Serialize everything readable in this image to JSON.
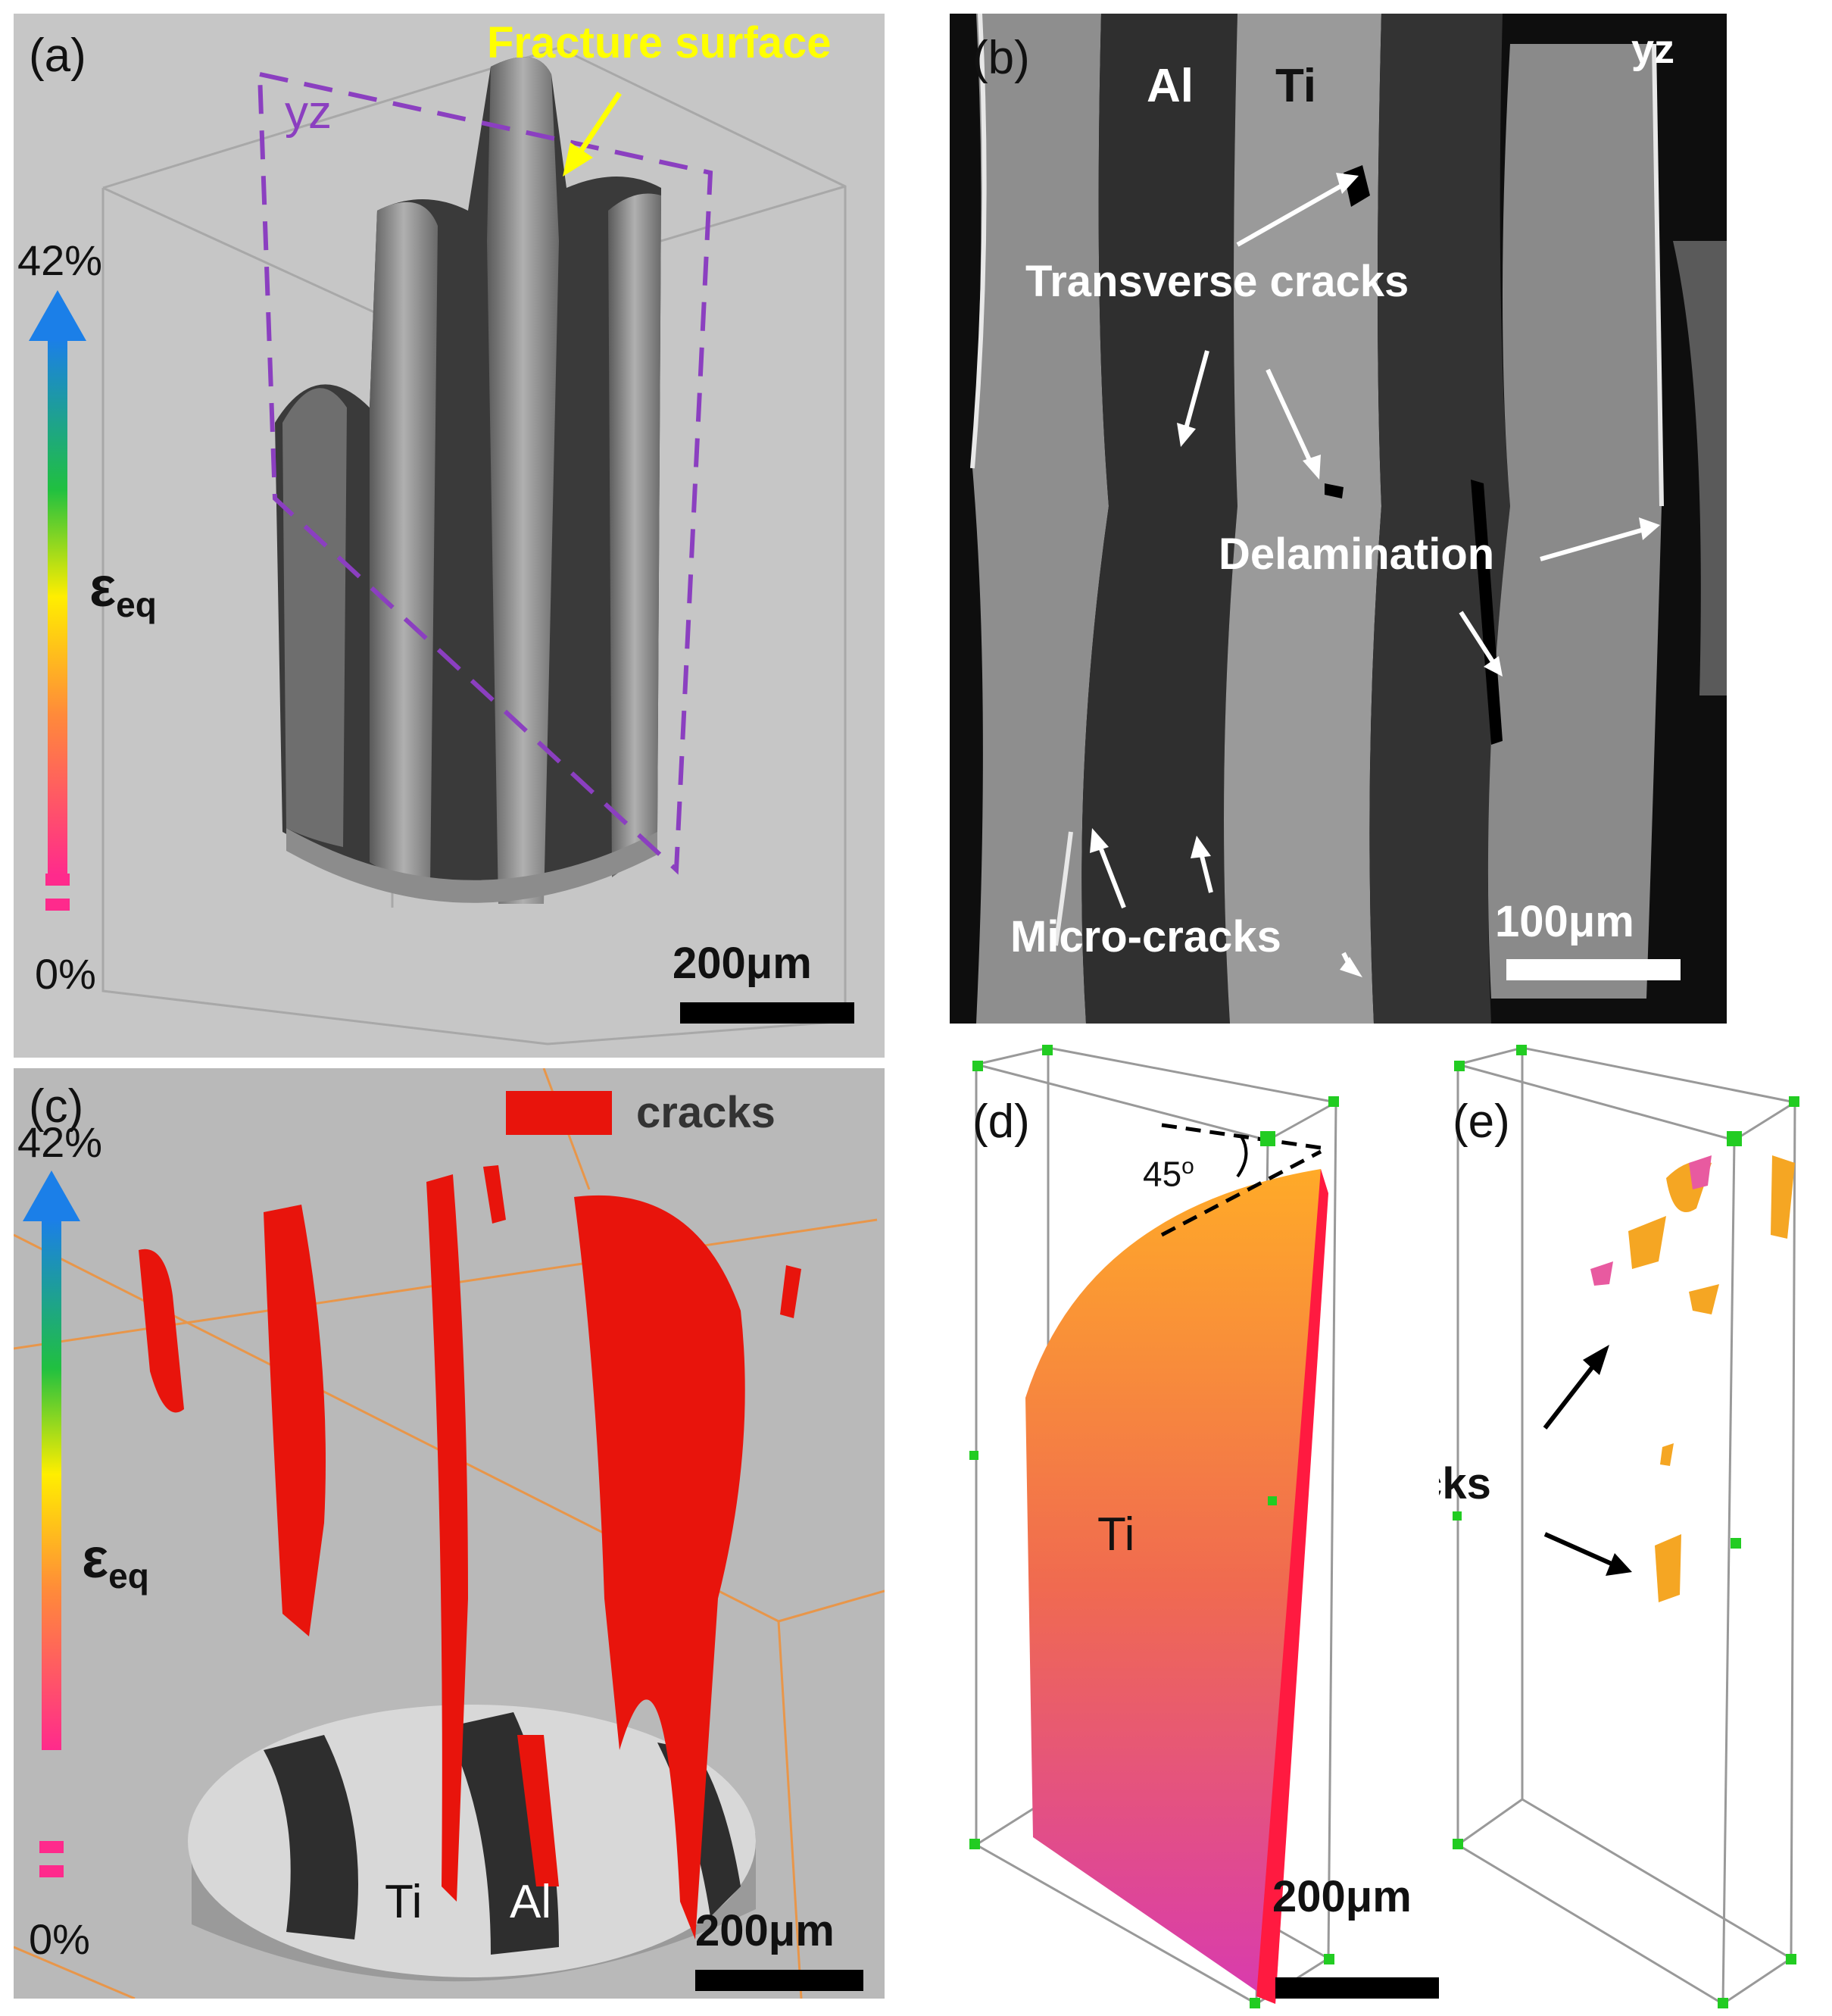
{
  "panel_a": {
    "label": "(a)",
    "fracture_label": "Fracture surface",
    "plane_label": "yz",
    "colorbar": {
      "max": "42%",
      "min": "0%",
      "symbol": "ε",
      "subscript": "eq"
    },
    "scalebar": "200μm",
    "colors": {
      "background": "#c6c6c6",
      "plane": "#8b3fc0",
      "fracture_text": "#ffff00"
    }
  },
  "panel_b": {
    "label": "(b)",
    "layer_al": "Al",
    "layer_ti": "Ti",
    "plane_label": "yz",
    "annotations": {
      "transverse": "Transverse cracks",
      "delamination": "Delamination",
      "micro": "Micro-cracks"
    },
    "scalebar": "100μm"
  },
  "panel_c": {
    "label": "(c)",
    "legend": "cracks",
    "colorbar": {
      "max": "42%",
      "min": "0%",
      "symbol": "ε",
      "subscript": "eq"
    },
    "layer_ti": "Ti",
    "layer_al": "Al",
    "scalebar": "200μm",
    "colors": {
      "cracks": "#e8140c",
      "background": "#b9b9b9"
    }
  },
  "panel_d": {
    "label": "(d)",
    "angle": "45",
    "angle_unit": "o",
    "layer_ti": "Ti",
    "scalebar": "200μm"
  },
  "panel_e": {
    "label": "(e)",
    "annotation": "cracks"
  }
}
